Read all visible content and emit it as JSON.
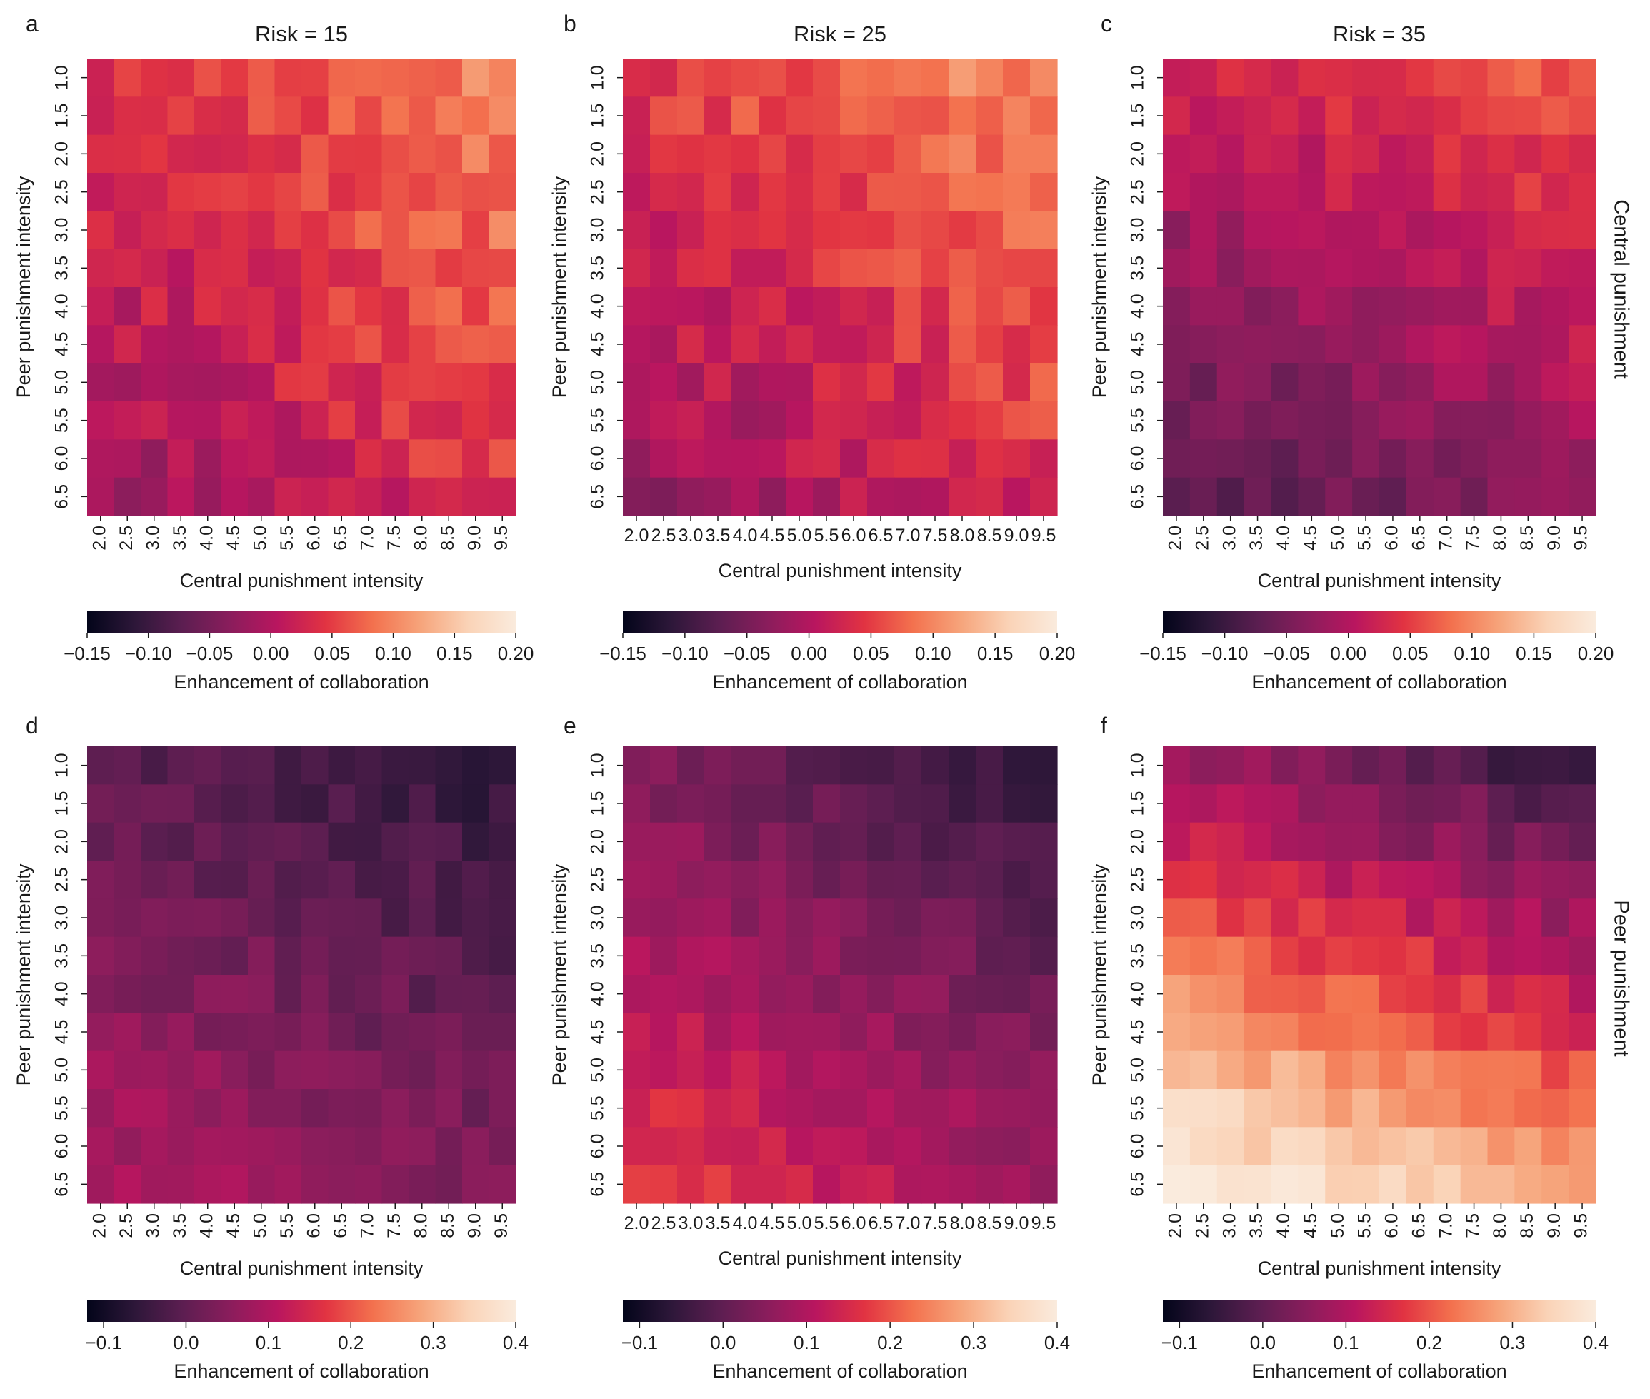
{
  "figure": {
    "row_labels": [
      "Central punishment",
      "Peer punishment"
    ],
    "colormap": [
      "#03051a",
      "#2d1739",
      "#5c1e51",
      "#8a1d5c",
      "#b9165f",
      "#e13342",
      "#f3714e",
      "#f6a47b",
      "#fad3b7",
      "#faebdd"
    ]
  },
  "chart_data": [
    {
      "type": "heatmap",
      "panel": "a",
      "title": "Risk = 15",
      "xlabel": "Central punishment intensity",
      "ylabel": "Peer punishment intensity",
      "x_ticks": [
        "2.0",
        "2.5",
        "3.0",
        "3.5",
        "4.0",
        "4.5",
        "5.0",
        "5.5",
        "6.0",
        "6.5",
        "7.0",
        "7.5",
        "8.0",
        "8.5",
        "9.0",
        "9.5"
      ],
      "y_ticks": [
        "1.0",
        "1.5",
        "2.0",
        "2.5",
        "3.0",
        "3.5",
        "4.0",
        "4.5",
        "5.0",
        "5.5",
        "6.0",
        "6.5"
      ],
      "x_range": [
        1.75,
        9.75
      ],
      "y_range": [
        0.75,
        6.75
      ],
      "x_tick_rotation": "vertical",
      "colorbar": {
        "label": "Enhancement of collaboration",
        "min": -0.15,
        "max": 0.2,
        "ticks": [
          "−0.15",
          "−0.10",
          "−0.05",
          "0.00",
          "0.05",
          "0.10",
          "0.15",
          "0.20"
        ]
      },
      "gradient": {
        "base": 0.04,
        "x": 0.065,
        "y": -0.055,
        "noise": 0.025
      }
    },
    {
      "type": "heatmap",
      "panel": "b",
      "title": "Risk = 25",
      "xlabel": "Central punishment intensity",
      "ylabel": "Peer punishment intensity",
      "x_ticks": [
        "2.0",
        "2.5",
        "3.0",
        "3.5",
        "4.0",
        "4.5",
        "5.0",
        "5.5",
        "6.0",
        "6.5",
        "7.0",
        "7.5",
        "8.0",
        "8.5",
        "9.0",
        "9.5"
      ],
      "y_ticks": [
        "1.0",
        "1.5",
        "2.0",
        "2.5",
        "3.0",
        "3.5",
        "4.0",
        "4.5",
        "5.0",
        "5.5",
        "6.0",
        "6.5"
      ],
      "x_range": [
        1.75,
        9.75
      ],
      "y_range": [
        0.75,
        6.75
      ],
      "x_tick_rotation": "horizontal",
      "colorbar": {
        "label": "Enhancement of collaboration",
        "min": -0.15,
        "max": 0.2,
        "ticks": [
          "−0.15",
          "−0.10",
          "−0.05",
          "0.00",
          "0.05",
          "0.10",
          "0.15",
          "0.20"
        ]
      },
      "gradient": {
        "base": 0.04,
        "x": 0.06,
        "y": -0.07,
        "noise": 0.025
      }
    },
    {
      "type": "heatmap",
      "panel": "c",
      "title": "Risk = 35",
      "xlabel": "Central punishment intensity",
      "ylabel": "Peer punishment intensity",
      "x_ticks": [
        "2.0",
        "2.5",
        "3.0",
        "3.5",
        "4.0",
        "4.5",
        "5.0",
        "5.5",
        "6.0",
        "6.5",
        "7.0",
        "7.5",
        "8.0",
        "8.5",
        "9.0",
        "9.5"
      ],
      "y_ticks": [
        "1.0",
        "1.5",
        "2.0",
        "2.5",
        "3.0",
        "3.5",
        "4.0",
        "4.5",
        "5.0",
        "5.5",
        "6.0",
        "6.5"
      ],
      "x_range": [
        1.75,
        9.75
      ],
      "y_range": [
        0.75,
        6.75
      ],
      "x_tick_rotation": "vertical",
      "colorbar": {
        "label": "Enhancement of collaboration",
        "min": -0.15,
        "max": 0.2,
        "ticks": [
          "−0.15",
          "−0.10",
          "−0.05",
          "0.00",
          "0.05",
          "0.10",
          "0.15",
          "0.20"
        ]
      },
      "gradient": {
        "base": -0.005,
        "x": 0.05,
        "y": -0.1,
        "noise": 0.02
      }
    },
    {
      "type": "heatmap",
      "panel": "d",
      "title": "",
      "xlabel": "Central punishment intensity",
      "ylabel": "Peer punishment intensity",
      "x_ticks": [
        "2.0",
        "2.5",
        "3.0",
        "3.5",
        "4.0",
        "4.5",
        "5.0",
        "5.5",
        "6.0",
        "6.5",
        "7.0",
        "7.5",
        "8.0",
        "8.5",
        "9.0",
        "9.5"
      ],
      "y_ticks": [
        "1.0",
        "1.5",
        "2.0",
        "2.5",
        "3.0",
        "3.5",
        "4.0",
        "4.5",
        "5.0",
        "5.5",
        "6.0",
        "6.5"
      ],
      "x_range": [
        1.75,
        9.75
      ],
      "y_range": [
        0.75,
        6.75
      ],
      "x_tick_rotation": "vertical",
      "colorbar": {
        "label": "Enhancement of collaboration",
        "min": -0.12,
        "max": 0.4,
        "ticks": [
          "−0.1",
          "0.0",
          "0.1",
          "0.2",
          "0.3",
          "0.4"
        ]
      },
      "gradient": {
        "base": 0.02,
        "x": -0.06,
        "y": 0.1,
        "noise": 0.025
      }
    },
    {
      "type": "heatmap",
      "panel": "e",
      "title": "",
      "xlabel": "Central punishment intensity",
      "ylabel": "Peer punishment intensity",
      "x_ticks": [
        "2.0",
        "2.5",
        "3.0",
        "3.5",
        "4.0",
        "4.5",
        "5.0",
        "5.5",
        "6.0",
        "6.5",
        "7.0",
        "7.5",
        "8.0",
        "8.5",
        "9.0",
        "9.5"
      ],
      "y_ticks": [
        "1.0",
        "1.5",
        "2.0",
        "2.5",
        "3.0",
        "3.5",
        "4.0",
        "4.5",
        "5.0",
        "5.5",
        "6.0",
        "6.5"
      ],
      "x_range": [
        1.75,
        9.75
      ],
      "y_range": [
        0.75,
        6.75
      ],
      "x_tick_rotation": "horizontal",
      "colorbar": {
        "label": "Enhancement of collaboration",
        "min": -0.12,
        "max": 0.4,
        "ticks": [
          "−0.1",
          "0.0",
          "0.1",
          "0.2",
          "0.3",
          "0.4"
        ]
      },
      "gradient": {
        "base": 0.06,
        "x": -0.1,
        "y": 0.14,
        "noise": 0.025
      }
    },
    {
      "type": "heatmap",
      "panel": "f",
      "title": "",
      "xlabel": "Central punishment intensity",
      "ylabel": "Peer punishment intensity",
      "x_ticks": [
        "2.0",
        "2.5",
        "3.0",
        "3.5",
        "4.0",
        "4.5",
        "5.0",
        "5.5",
        "6.0",
        "6.5",
        "7.0",
        "7.5",
        "8.0",
        "8.5",
        "9.0",
        "9.5"
      ],
      "y_ticks": [
        "1.0",
        "1.5",
        "2.0",
        "2.5",
        "3.0",
        "3.5",
        "4.0",
        "4.5",
        "5.0",
        "5.5",
        "6.0",
        "6.5"
      ],
      "x_range": [
        1.75,
        9.75
      ],
      "y_range": [
        0.75,
        6.75
      ],
      "x_tick_rotation": "vertical",
      "colorbar": {
        "label": "Enhancement of collaboration",
        "min": -0.12,
        "max": 0.4,
        "ticks": [
          "−0.1",
          "0.0",
          "0.1",
          "0.2",
          "0.3",
          "0.4"
        ]
      },
      "gradient": {
        "base": 0.18,
        "x": -0.13,
        "y": 0.33,
        "noise": 0.03
      }
    }
  ]
}
